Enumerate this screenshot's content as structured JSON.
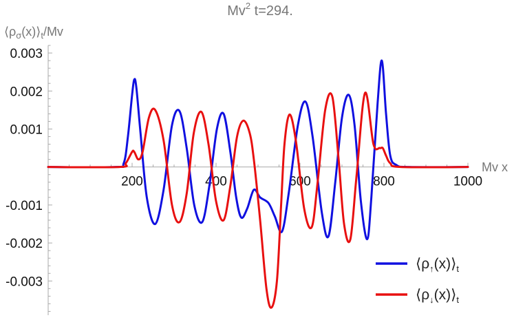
{
  "chart_data": {
    "type": "line",
    "title": {
      "main": "Mv",
      "sup": "2",
      "rest": " t=294."
    },
    "xlabel": "Mv x",
    "ylabel": {
      "pre": "⟨ρ",
      "sub": "σ",
      "mid": "(x)⟩",
      "sub2": "t",
      "post": "/Mv"
    },
    "xlim": [
      0,
      1000
    ],
    "ylim": [
      -0.0039,
      0.0032
    ],
    "x_ticks": [
      200,
      400,
      600,
      800,
      1000
    ],
    "x_tick_labels": [
      "200",
      "400",
      "600",
      "800",
      "1000"
    ],
    "y_ticks": [
      -0.003,
      -0.002,
      -0.001,
      0.001,
      0.002,
      0.003
    ],
    "y_tick_labels": [
      "-0.003",
      "-0.002",
      "-0.001",
      "0.001",
      "0.002",
      "0.003"
    ],
    "grid": false,
    "legend_position": "bottom-right",
    "series": [
      {
        "name": {
          "pre": "⟨ρ",
          "sub": "↑",
          "mid": "(x)⟩",
          "sub2": "t"
        },
        "color": "#1010e0",
        "x": [
          0,
          160,
          180,
          190,
          200,
          205,
          210,
          220,
          235,
          255,
          275,
          295,
          313,
          330,
          348,
          367,
          384,
          402,
          418,
          434,
          448,
          460,
          474,
          490,
          505,
          525,
          540,
          557,
          573,
          595,
          613,
          630,
          652,
          668,
          684,
          700,
          716,
          730,
          745,
          760,
          770,
          785,
          795,
          805,
          815,
          830,
          860,
          1000
        ],
        "y": [
          0,
          0,
          0.0001,
          0.0008,
          0.0019,
          0.0023,
          0.0021,
          0.0009,
          -0.0008,
          -0.0015,
          -0.0006,
          0.0011,
          0.00147,
          0.0005,
          -0.001,
          -0.00145,
          -0.0005,
          0.001,
          0.0014,
          0.0004,
          -0.0008,
          -0.00133,
          -0.0011,
          -0.0006,
          -0.0008,
          -0.00095,
          -0.0013,
          -0.0017,
          -0.0007,
          0.0011,
          0.00172,
          0.0008,
          -0.0012,
          -0.00182,
          -0.0004,
          0.0013,
          0.0019,
          0.0011,
          -0.0009,
          -0.0019,
          -0.0008,
          0.0017,
          0.0028,
          0.0014,
          0.0003,
          5e-05,
          0,
          0
        ]
      },
      {
        "name": {
          "pre": "⟨ρ",
          "sub": "↓",
          "mid": "(x)⟩",
          "sub2": "t"
        },
        "color": "#e81010",
        "x": [
          0,
          170,
          185,
          200,
          205,
          215,
          225,
          240,
          255,
          275,
          295,
          313,
          330,
          347,
          365,
          382,
          400,
          418,
          434,
          450,
          465,
          480,
          490,
          505,
          520,
          532,
          545,
          555,
          563,
          575,
          590,
          610,
          628,
          642,
          660,
          677,
          692,
          705,
          720,
          735,
          755,
          775,
          790,
          797,
          805,
          815,
          840,
          1000
        ],
        "y": [
          0,
          0,
          0.0001,
          0.0004,
          0.0004,
          0.0002,
          0.0004,
          0.0013,
          0.0015,
          0.0007,
          -0.001,
          -0.00145,
          -0.0007,
          0.0009,
          0.00145,
          0.0006,
          -0.0009,
          -0.0014,
          -0.0005,
          0.0008,
          0.00122,
          0.0009,
          0.0002,
          -0.0014,
          -0.0032,
          -0.0037,
          -0.003,
          -0.001,
          0.0006,
          0.00138,
          0.0007,
          -0.0011,
          -0.00158,
          -0.0004,
          0.0015,
          0.00185,
          0.0002,
          -0.0015,
          -0.0019,
          -0.0002,
          0.00195,
          0.0006,
          0.0005,
          0.0005,
          0.0003,
          0.0001,
          0,
          0
        ]
      }
    ]
  }
}
